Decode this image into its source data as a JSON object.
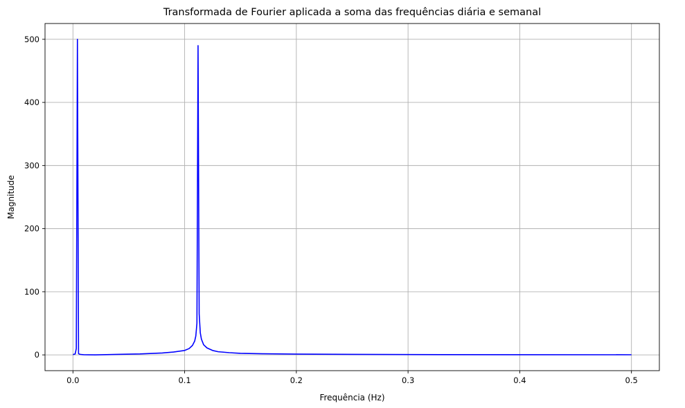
{
  "chart_data": {
    "type": "line",
    "title": "Transformada de Fourier aplicada a soma das frequências diária e semanal",
    "xlabel": "Frequência (Hz)",
    "ylabel": "Magnitude",
    "xlim": [
      -0.025,
      0.525
    ],
    "ylim": [
      -25,
      525
    ],
    "x_ticks": [
      0.0,
      0.1,
      0.2,
      0.3,
      0.4,
      0.5
    ],
    "x_tick_labels": [
      "0.0",
      "0.1",
      "0.2",
      "0.3",
      "0.4",
      "0.5"
    ],
    "y_ticks": [
      0,
      100,
      200,
      300,
      400,
      500
    ],
    "y_tick_labels": [
      "0",
      "100",
      "200",
      "300",
      "400",
      "500"
    ],
    "grid": true,
    "series": [
      {
        "color": "#0000ff",
        "x": [
          0.0,
          0.002,
          0.003,
          0.004,
          0.005,
          0.006,
          0.008,
          0.01,
          0.02,
          0.04,
          0.06,
          0.08,
          0.09,
          0.1,
          0.104,
          0.107,
          0.109,
          0.11,
          0.111,
          0.112,
          0.113,
          0.114,
          0.115,
          0.117,
          0.12,
          0.125,
          0.13,
          0.14,
          0.15,
          0.17,
          0.2,
          0.25,
          0.3,
          0.4,
          0.5
        ],
        "y": [
          0.5,
          1.5,
          10,
          500,
          2,
          1,
          0.5,
          0.2,
          0.0,
          0.8,
          1.5,
          3,
          4.5,
          7,
          10,
          15,
          22,
          30,
          50,
          490,
          65,
          35,
          25,
          16,
          11,
          7,
          5,
          3.5,
          2.5,
          1.8,
          1.2,
          0.8,
          0.5,
          0.3,
          0.2
        ]
      }
    ]
  }
}
